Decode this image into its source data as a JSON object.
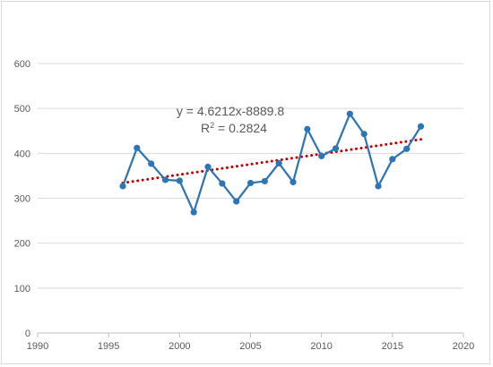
{
  "chart_data": {
    "type": "scatter",
    "title": "",
    "xlabel": "",
    "ylabel": "",
    "xlim": [
      1990,
      2020
    ],
    "ylim": [
      0,
      600
    ],
    "xticks": [
      "1990",
      "1995",
      "2000",
      "2005",
      "2010",
      "2015",
      "2020"
    ],
    "yticks": [
      "0",
      "100",
      "200",
      "300",
      "400",
      "500",
      "600"
    ],
    "grid": "horizontal",
    "legend": "none",
    "series": [
      {
        "color": "#2E75B6",
        "style": "line-with-markers",
        "x": [
          1996,
          1997,
          1998,
          1999,
          2000,
          2001,
          2002,
          2003,
          2004,
          2005,
          2006,
          2007,
          2008,
          2009,
          2010,
          2011,
          2012,
          2013,
          2014,
          2015,
          2016,
          2017
        ],
        "y": [
          327,
          412,
          377,
          341,
          339,
          269,
          370,
          333,
          293,
          334,
          338,
          378,
          336,
          454,
          394,
          411,
          488,
          443,
          327,
          387,
          410,
          460
        ]
      }
    ],
    "trendline": {
      "color": "#C00000",
      "style": "dotted",
      "slope": 4.6212,
      "intercept": -8889.8,
      "x_range": [
        1996,
        2017
      ]
    },
    "annotations": {
      "equation": "y = 4.6212x-8889.8",
      "r2_prefix": "R",
      "r2_sup": "2",
      "r2_value": " = 0.2824"
    }
  }
}
